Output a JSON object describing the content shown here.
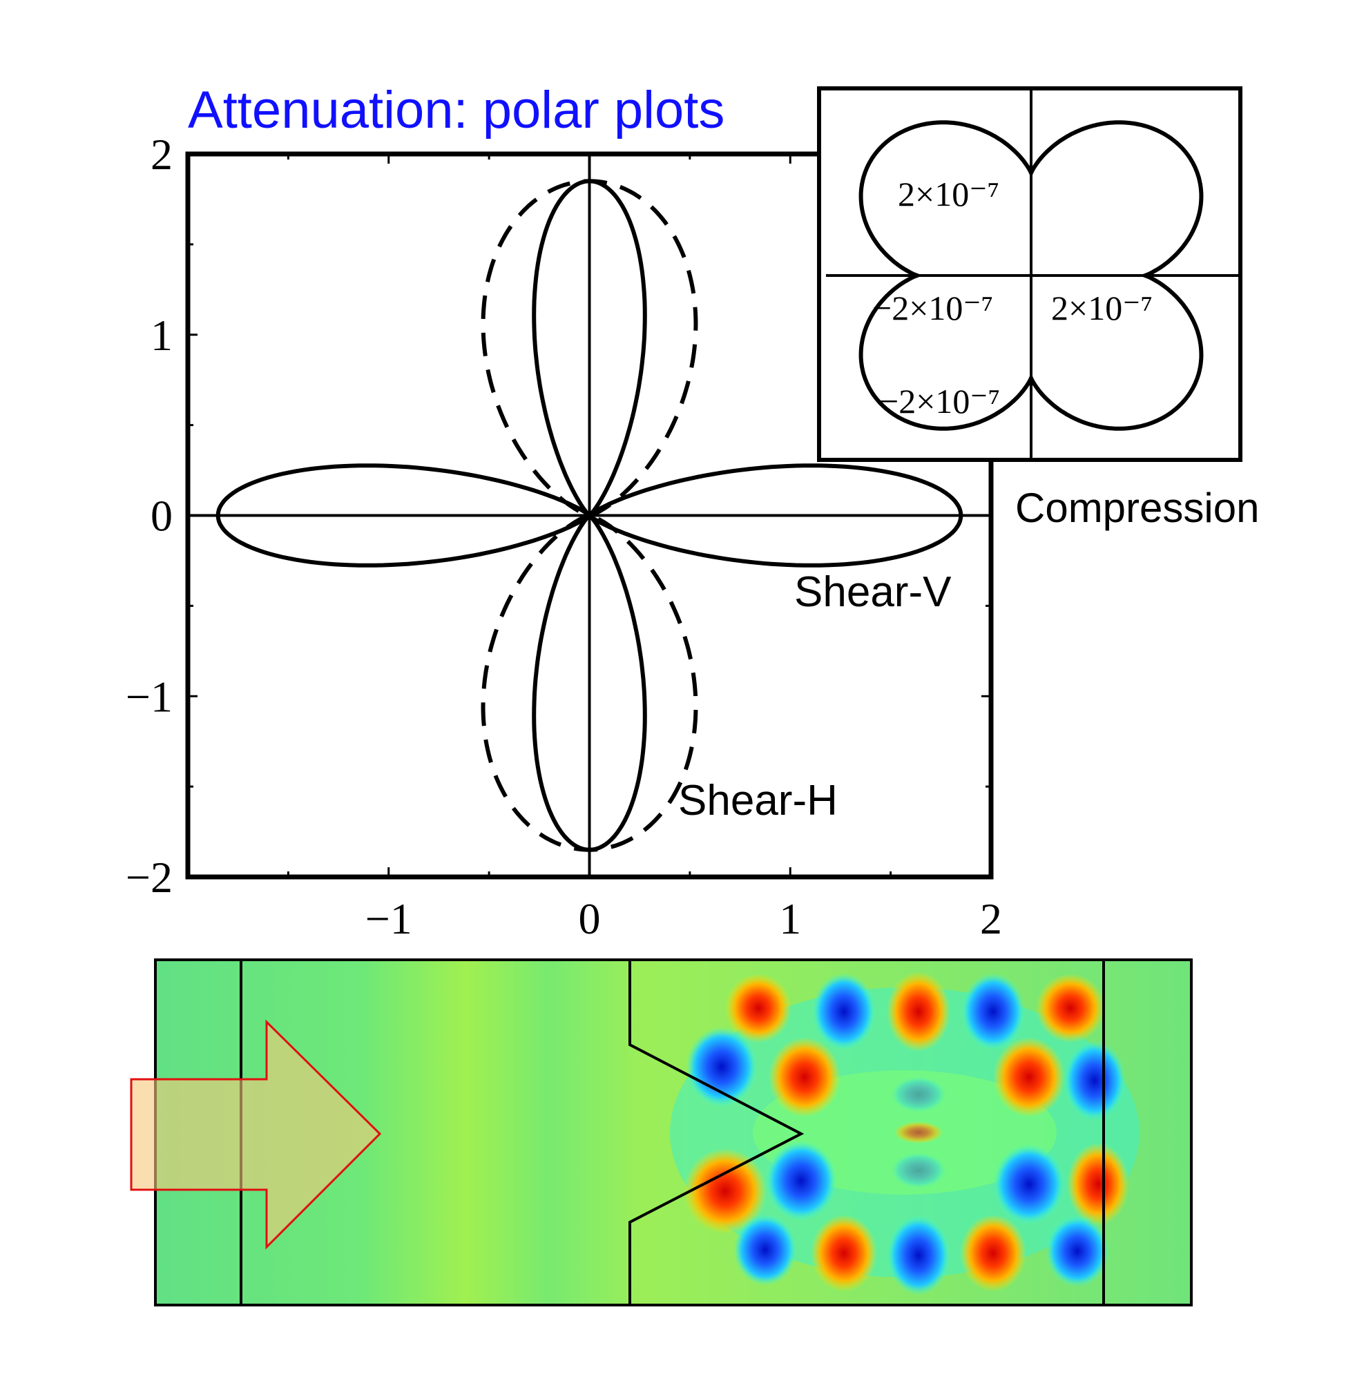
{
  "chart_data": [
    {
      "type": "polar",
      "title": "Attenuation: polar plots",
      "xlim": [
        -2,
        2
      ],
      "ylim": [
        -2,
        2
      ],
      "x_ticks": [
        "−1",
        "0",
        "1",
        "2"
      ],
      "y_ticks": [
        "2",
        "1",
        "0",
        "−1",
        "−2"
      ],
      "grid": false,
      "series": [
        {
          "name": "Shear-V",
          "line_style": "solid",
          "lobes_along": "x-axis",
          "max_radius": 1.85,
          "petal_exponent": 16
        },
        {
          "name": "Shear-H",
          "line_style": "solid",
          "lobes_along": "y-axis",
          "max_radius": 1.85,
          "petal_exponent": 16
        },
        {
          "name": "",
          "line_style": "dashed",
          "lobes_along": "y-axis",
          "max_radius": 1.85,
          "petal_exponent": 4
        }
      ],
      "annotations": [
        "Shear-V",
        "Shear-H"
      ]
    },
    {
      "type": "polar",
      "label": "Compression",
      "tick_labels": {
        "top": "2×10⁻⁷",
        "left": "−2×10⁻⁷",
        "right": "2×10⁻⁷",
        "bottom": "−2×10⁻⁷"
      },
      "shape": "four-lobed butterfly, lobes on the diagonals"
    }
  ],
  "wave_field": {
    "description_labels": [],
    "colors": {
      "background": "#6ee56a",
      "hot": "#f02000",
      "cold": "#0a2af0",
      "arrow_fill": "#f8d08a",
      "arrow_stroke": "#e01010"
    }
  }
}
